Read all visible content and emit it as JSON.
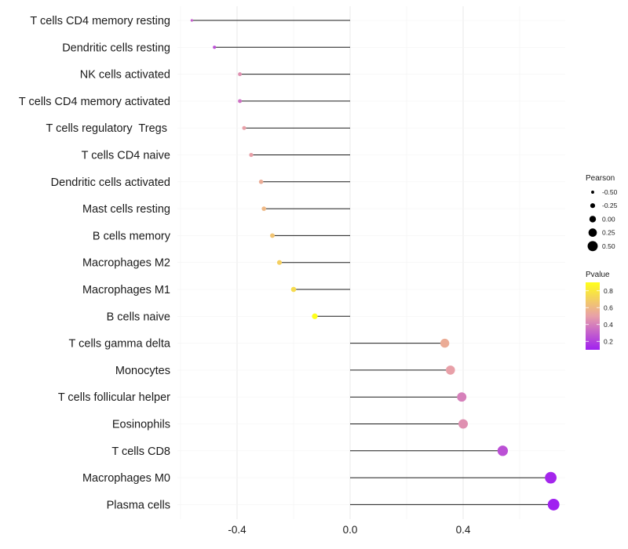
{
  "chart_data": {
    "type": "lollipop",
    "title": "",
    "xlabel": "",
    "ylabel": "",
    "xlim": [
      -0.6,
      0.76
    ],
    "x_ticks": [
      -0.4,
      0.0,
      0.4
    ],
    "x_tick_labels": [
      "-0.4",
      "0.0",
      "0.4"
    ],
    "baseline": 0.0,
    "categories": [
      "T cells CD4 memory resting",
      "Dendritic cells resting",
      "NK cells activated",
      "T cells CD4 memory activated",
      "T cells regulatory  Tregs ",
      "T cells CD4 naive",
      "Dendritic cells activated",
      "Mast cells resting",
      "B cells memory",
      "Macrophages M2",
      "Macrophages M1",
      "B cells naive",
      "T cells gamma delta",
      "Monocytes",
      "T cells follicular helper",
      "Eosinophils",
      "T cells CD8",
      "Macrophages M0",
      "Plasma cells"
    ],
    "pearson": [
      -0.56,
      -0.48,
      -0.39,
      -0.39,
      -0.375,
      -0.35,
      -0.315,
      -0.305,
      -0.275,
      -0.25,
      -0.2,
      -0.125,
      0.335,
      0.355,
      0.395,
      0.4,
      0.54,
      0.71,
      0.72
    ],
    "pvalue": [
      0.3,
      0.25,
      0.45,
      0.35,
      0.5,
      0.5,
      0.55,
      0.6,
      0.65,
      0.7,
      0.75,
      0.9,
      0.55,
      0.5,
      0.4,
      0.45,
      0.25,
      0.12,
      0.1
    ],
    "legend_size": {
      "title": "Pearson",
      "values": [
        -0.5,
        -0.25,
        0.0,
        0.25,
        0.5
      ],
      "labels": [
        "-0.50",
        "-0.25",
        "0.00",
        "0.25",
        "0.50"
      ]
    },
    "legend_color": {
      "title": "Pvalue",
      "ticks": [
        0.2,
        0.4,
        0.6,
        0.8
      ],
      "labels": [
        "0.2",
        "0.4",
        "0.6",
        "0.8"
      ],
      "range": [
        0.1,
        0.9
      ],
      "color_low": "#a020f0",
      "color_mid": "#e8a0a8",
      "color_high": "#ffff1a"
    },
    "grid": true,
    "legend_position": "right"
  }
}
